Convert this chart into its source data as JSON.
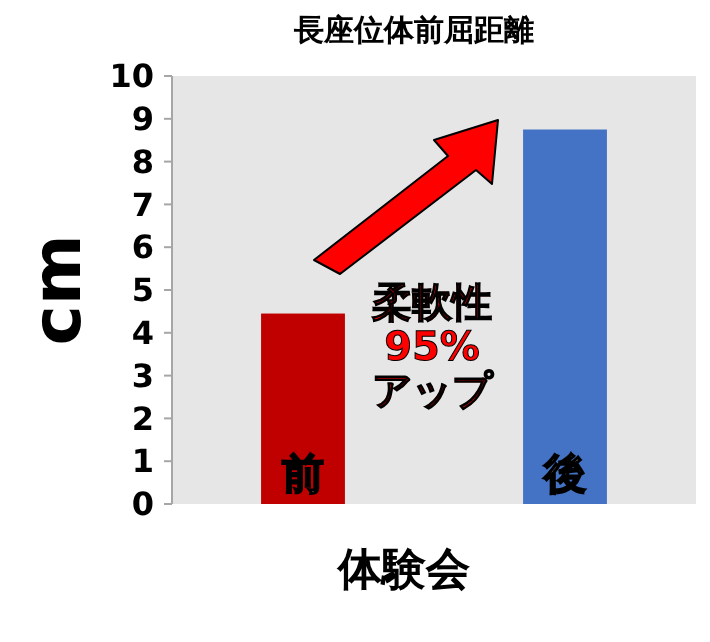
{
  "chart_data": {
    "type": "bar",
    "title": "長座位体前屈距離",
    "xlabel": "体験会",
    "ylabel": "cm",
    "categories": [
      "前",
      "後"
    ],
    "values": [
      4.45,
      8.75
    ],
    "colors": [
      "#c00000",
      "#4472c4"
    ],
    "ylim": [
      0,
      10
    ],
    "yticks": [
      0,
      1,
      2,
      3,
      4,
      5,
      6,
      7,
      8,
      9,
      10
    ],
    "grid": false,
    "annotations": [
      "柔軟性\n95%\nアップ"
    ]
  }
}
